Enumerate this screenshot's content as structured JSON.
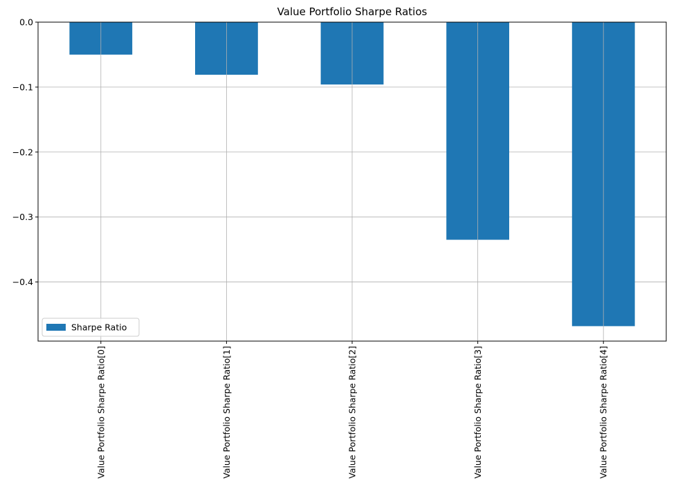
{
  "chart_data": {
    "type": "bar",
    "title": "Value Portfolio Sharpe Ratios",
    "xlabel": "",
    "ylabel": "",
    "categories": [
      "Value Portfolio Sharpe Ratio[0]",
      "Value Portfolio Sharpe Ratio[1]",
      "Value Portfolio Sharpe Ratio[2]",
      "Value Portfolio Sharpe Ratio[3]",
      "Value Portfolio Sharpe Ratio[4]"
    ],
    "series": [
      {
        "name": "Sharpe Ratio",
        "color": "#1f77b4",
        "values": [
          -0.05,
          -0.081,
          -0.096,
          -0.335,
          -0.468
        ]
      }
    ],
    "ylim": [
      -0.491,
      0.0
    ],
    "yticks": [
      0.0,
      -0.1,
      -0.2,
      -0.3,
      -0.4
    ],
    "ytick_labels": [
      "0.0",
      "−0.1",
      "−0.2",
      "−0.3",
      "−0.4"
    ],
    "grid": true,
    "legend_position": "lower-left"
  }
}
